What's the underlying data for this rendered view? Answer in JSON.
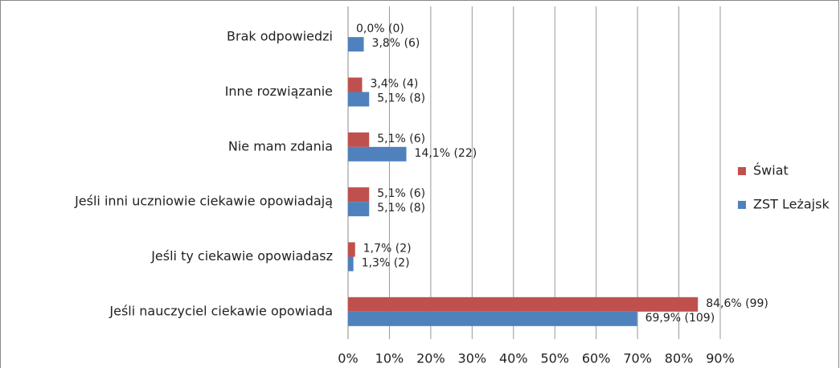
{
  "chart_data": {
    "type": "bar",
    "orientation": "horizontal",
    "categories": [
      "Brak odpowiedzi",
      "Inne rozwiązanie",
      "Nie mam zdania",
      "Jeśli inni uczniowie ciekawie opowiadają",
      "Jeśli ty ciekawie opowiadasz",
      "Jeśli nauczyciel ciekawie opowiada"
    ],
    "series": [
      {
        "name": "Świat",
        "color": "#c0504d",
        "values": [
          0,
          3.4,
          5.1,
          5.1,
          1.7,
          84.6
        ],
        "value_labels": [
          "0,0% (0)",
          "3,4% (4)",
          "5,1% (6)",
          "5,1% (6)",
          "1,7% (2)",
          "84,6% (99)"
        ]
      },
      {
        "name": "ZST Leżajsk",
        "color": "#4f81bd",
        "values": [
          3.8,
          5.1,
          14.1,
          5.1,
          1.3,
          69.9
        ],
        "value_labels": [
          "3,8% (6)",
          "5,1% (8)",
          "14,1% (22)",
          "5,1% (8)",
          "1,3% (2)",
          "69,9% (109)"
        ]
      }
    ],
    "xlim": [
      0,
      90
    ],
    "xticks": [
      {
        "value": 0,
        "label": "0%"
      },
      {
        "value": 10,
        "label": "10%"
      },
      {
        "value": 20,
        "label": "20%"
      },
      {
        "value": 30,
        "label": "30%"
      },
      {
        "value": 40,
        "label": "40%"
      },
      {
        "value": 50,
        "label": "50%"
      },
      {
        "value": 60,
        "label": "60%"
      },
      {
        "value": 70,
        "label": "70%"
      },
      {
        "value": 80,
        "label": "80%"
      },
      {
        "value": 90,
        "label": "90%"
      }
    ],
    "grid": true,
    "legend": "right"
  }
}
